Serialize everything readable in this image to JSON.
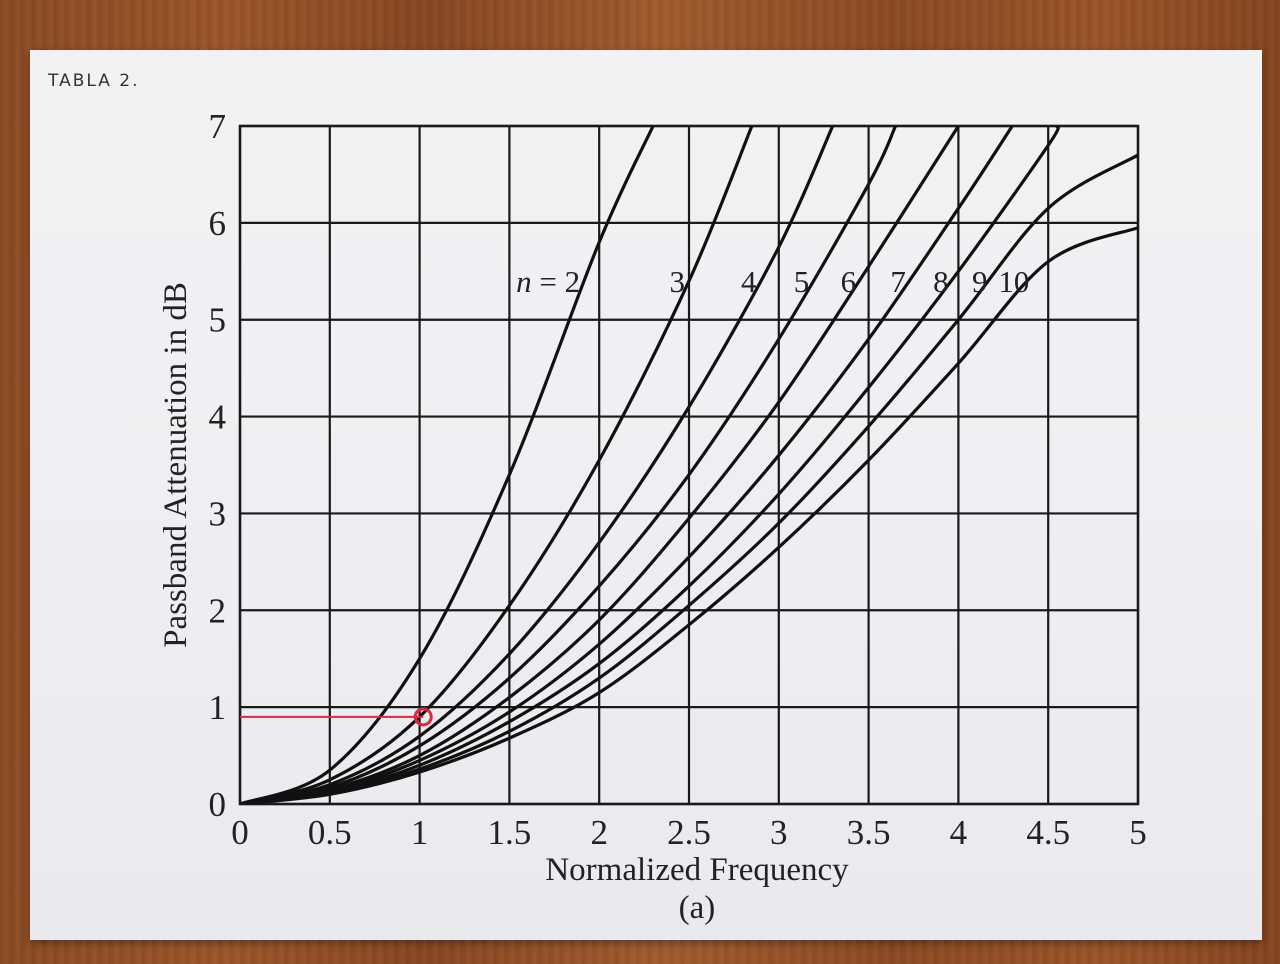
{
  "note": {
    "handwritten": "TABLA  2."
  },
  "chart_data": {
    "type": "line",
    "xlabel": "Normalized Frequency",
    "ylabel": "Passband Attenuation in dB",
    "caption": "(a)",
    "xlim": [
      0,
      5
    ],
    "ylim": [
      0,
      7
    ],
    "x_ticks": [
      "0",
      "0.5",
      "1",
      "1.5",
      "2",
      "2.5",
      "3",
      "3.5",
      "4",
      "4.5",
      "5"
    ],
    "y_ticks": [
      "0",
      "1",
      "2",
      "3",
      "4",
      "5",
      "6",
      "7"
    ],
    "grid": true,
    "series": [
      {
        "name": "n = 2",
        "points": [
          [
            0,
            0
          ],
          [
            0.5,
            0.35
          ],
          [
            1,
            1.5
          ],
          [
            1.5,
            3.4
          ],
          [
            2,
            5.8
          ],
          [
            2.3,
            7
          ]
        ]
      },
      {
        "name": "3",
        "points": [
          [
            0,
            0
          ],
          [
            0.5,
            0.25
          ],
          [
            1,
            0.9
          ],
          [
            1.5,
            2.05
          ],
          [
            2,
            3.55
          ],
          [
            2.5,
            5.4
          ],
          [
            2.85,
            7
          ]
        ]
      },
      {
        "name": "4",
        "points": [
          [
            0,
            0
          ],
          [
            0.5,
            0.2
          ],
          [
            1,
            0.7
          ],
          [
            1.5,
            1.55
          ],
          [
            2,
            2.7
          ],
          [
            2.5,
            4.1
          ],
          [
            3,
            5.75
          ],
          [
            3.3,
            7
          ]
        ]
      },
      {
        "name": "5",
        "points": [
          [
            0,
            0
          ],
          [
            0.5,
            0.17
          ],
          [
            1,
            0.6
          ],
          [
            1.5,
            1.3
          ],
          [
            2,
            2.25
          ],
          [
            2.5,
            3.4
          ],
          [
            3,
            4.8
          ],
          [
            3.5,
            6.4
          ],
          [
            3.65,
            7
          ]
        ]
      },
      {
        "name": "6",
        "points": [
          [
            0,
            0
          ],
          [
            0.5,
            0.15
          ],
          [
            1,
            0.5
          ],
          [
            1.5,
            1.1
          ],
          [
            2,
            1.9
          ],
          [
            2.5,
            2.95
          ],
          [
            3,
            4.15
          ],
          [
            3.5,
            5.55
          ],
          [
            4,
            7
          ]
        ]
      },
      {
        "name": "7",
        "points": [
          [
            0,
            0
          ],
          [
            0.5,
            0.13
          ],
          [
            1,
            0.45
          ],
          [
            1.5,
            0.95
          ],
          [
            2,
            1.65
          ],
          [
            2.5,
            2.55
          ],
          [
            3,
            3.6
          ],
          [
            3.5,
            4.8
          ],
          [
            4,
            6.15
          ],
          [
            4.3,
            7
          ]
        ]
      },
      {
        "name": "8",
        "points": [
          [
            0,
            0
          ],
          [
            0.5,
            0.12
          ],
          [
            1,
            0.4
          ],
          [
            1.5,
            0.85
          ],
          [
            2,
            1.45
          ],
          [
            2.5,
            2.25
          ],
          [
            3,
            3.2
          ],
          [
            3.5,
            4.3
          ],
          [
            4,
            5.5
          ],
          [
            4.5,
            6.8
          ],
          [
            4.55,
            7
          ]
        ]
      },
      {
        "name": "9",
        "points": [
          [
            0,
            0
          ],
          [
            0.5,
            0.11
          ],
          [
            1,
            0.36
          ],
          [
            1.5,
            0.75
          ],
          [
            2,
            1.3
          ],
          [
            2.5,
            2.05
          ],
          [
            3,
            2.9
          ],
          [
            3.5,
            3.9
          ],
          [
            4,
            5.0
          ],
          [
            4.5,
            6.15
          ],
          [
            5,
            6.7
          ]
        ]
      },
      {
        "name": "10",
        "points": [
          [
            0,
            0
          ],
          [
            0.5,
            0.1
          ],
          [
            1,
            0.33
          ],
          [
            1.5,
            0.68
          ],
          [
            2,
            1.15
          ],
          [
            2.5,
            1.85
          ],
          [
            3,
            2.65
          ],
          [
            3.5,
            3.55
          ],
          [
            4,
            4.55
          ],
          [
            4.5,
            5.6
          ],
          [
            5,
            5.95
          ]
        ]
      }
    ],
    "annotations": [
      {
        "type": "marker-circle",
        "x": 1.02,
        "y": 0.9,
        "color": "#e0283c"
      },
      {
        "type": "horizontal-line",
        "x_from": 0,
        "x_to": 1.02,
        "y": 0.9,
        "color": "#e0283c"
      }
    ]
  }
}
